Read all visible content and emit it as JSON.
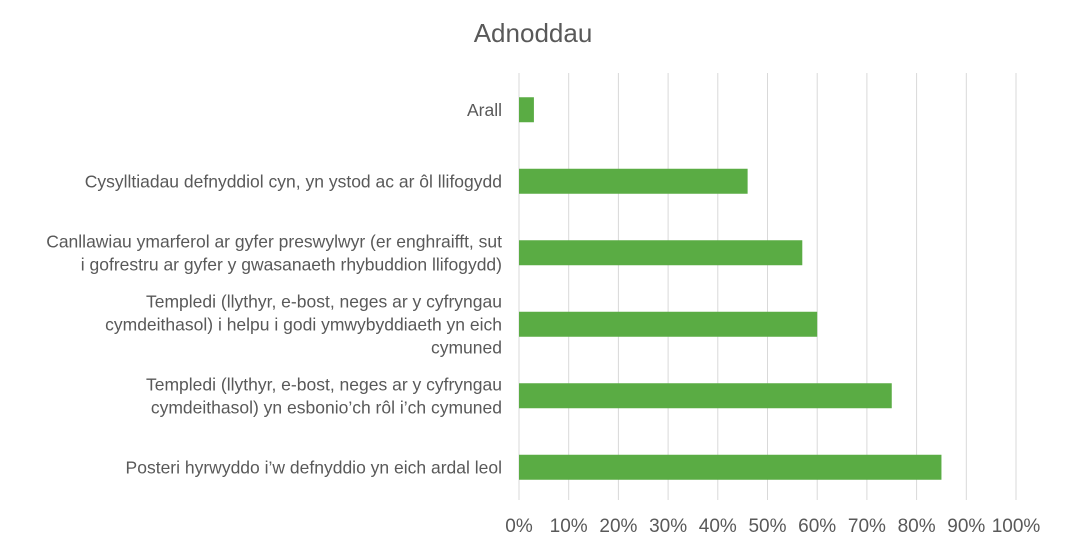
{
  "chart_data": {
    "type": "bar",
    "orientation": "horizontal",
    "title": "Adnoddau",
    "categories": [
      [
        "Arall"
      ],
      [
        "Cysylltiadau defnyddiol cyn, yn ystod ac ar ôl llifogydd"
      ],
      [
        "Canllawiau ymarferol ar gyfer preswylwyr (er enghraifft, sut",
        "i gofrestru ar gyfer y gwasanaeth rhybuddion llifogydd)"
      ],
      [
        "Templedi (llythyr, e-bost, neges ar y cyfryngau",
        "cymdeithasol) i helpu i godi ymwybyddiaeth yn eich",
        "cymuned"
      ],
      [
        "Templedi (llythyr, e-bost, neges ar y cyfryngau",
        "cymdeithasol) yn esbonio’ch rôl i’ch cymuned"
      ],
      [
        "Posteri hyrwyddo i’w defnyddio yn eich ardal leol"
      ]
    ],
    "values": [
      3,
      46,
      57,
      60,
      75,
      85
    ],
    "xlim": [
      0,
      100
    ],
    "xticks": [
      "0%",
      "10%",
      "20%",
      "30%",
      "40%",
      "50%",
      "60%",
      "70%",
      "80%",
      "90%",
      "100%"
    ],
    "grid": true,
    "bar_color": "#5aac44"
  }
}
